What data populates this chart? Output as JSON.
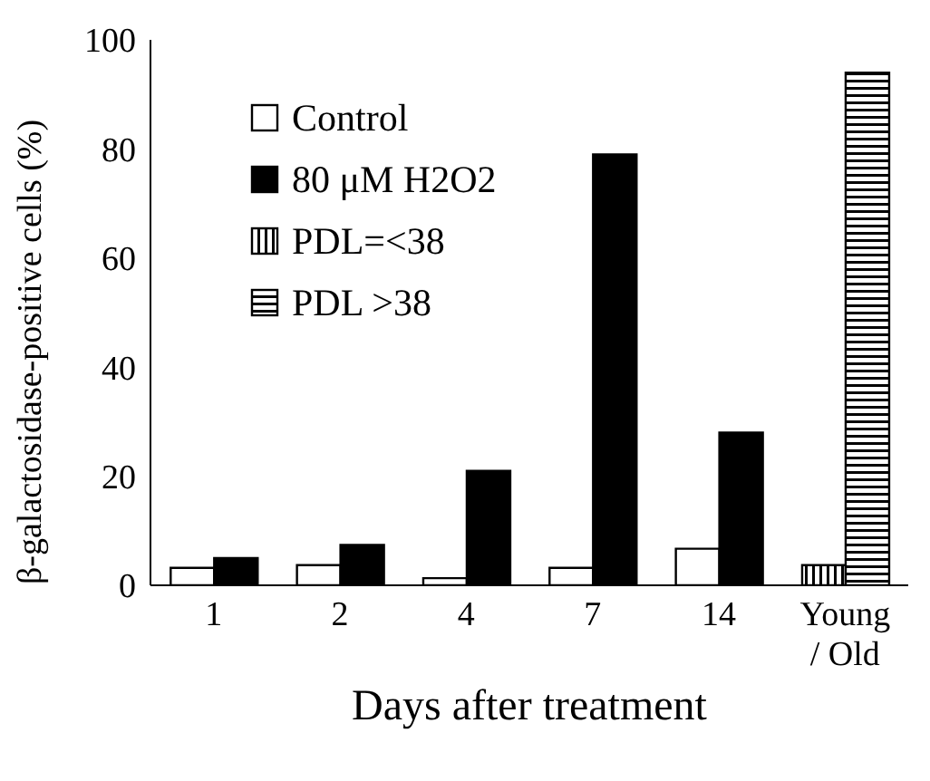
{
  "chart_data": {
    "type": "bar",
    "xlabel": "Days after treatment",
    "ylabel": "β-galactosidase-positive cells (%)",
    "categories": [
      "1",
      "2",
      "4",
      "7",
      "14",
      "Young / Old"
    ],
    "series": [
      {
        "name": "Control",
        "color": "#ffffff",
        "values": [
          3.2,
          3.7,
          1.3,
          3.2,
          6.7,
          null
        ]
      },
      {
        "name": "80 μM H2O2",
        "color": "#000000",
        "values": [
          5,
          7.4,
          21,
          79,
          28,
          null
        ]
      },
      {
        "name": "PDL=<38",
        "color": "#000000",
        "values": [
          null,
          null,
          null,
          null,
          null,
          3.7
        ]
      },
      {
        "name": "PDL >38",
        "color": "#000000",
        "values": [
          null,
          null,
          null,
          null,
          null,
          94
        ]
      }
    ],
    "ylim": [
      0,
      100
    ],
    "yticks": [
      0,
      20,
      40,
      60,
      80,
      100
    ],
    "grid": false,
    "legend": "top left"
  }
}
